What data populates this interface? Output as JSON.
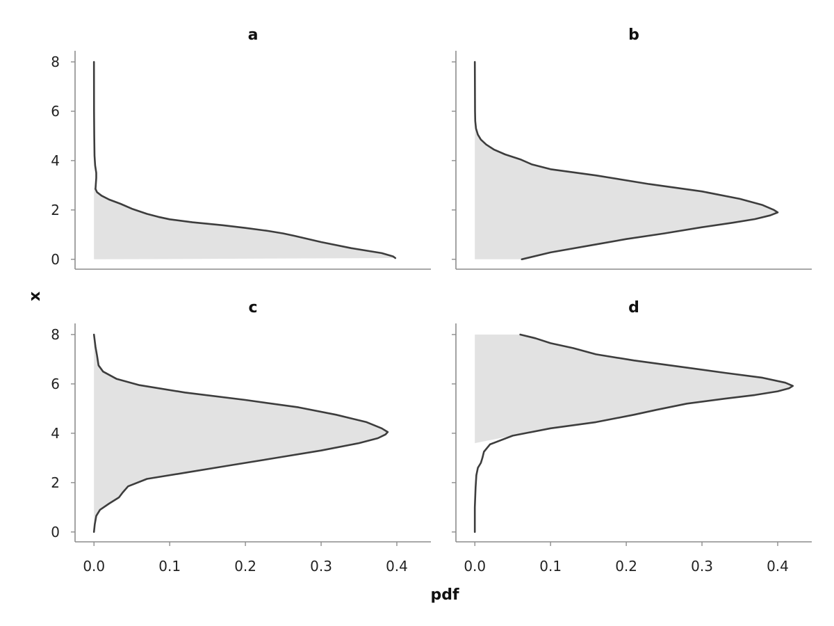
{
  "chart_data": {
    "type": "area",
    "xlabel": "pdf",
    "ylabel": "x",
    "xlim": [
      -0.025,
      0.445
    ],
    "ylim": [
      -0.4,
      8.45
    ],
    "xticks": [
      0.0,
      0.1,
      0.2,
      0.3,
      0.4
    ],
    "xtick_labels": [
      "0.0",
      "0.1",
      "0.2",
      "0.3",
      "0.4"
    ],
    "yticks": [
      0,
      2,
      4,
      6,
      8
    ],
    "ytick_labels": [
      "0",
      "2",
      "4",
      "6",
      "8"
    ],
    "grid": false,
    "legend": "none",
    "colors": {
      "fill": "#e2e2e2",
      "line": "#3d3d3d"
    },
    "panels": [
      {
        "title": "a",
        "x": [
          0.398,
          0.395,
          0.38,
          0.34,
          0.3,
          0.265,
          0.25,
          0.23,
          0.2,
          0.17,
          0.13,
          0.1,
          0.085,
          0.07,
          0.05,
          0.035,
          0.02,
          0.01,
          0.004,
          0.002,
          0.003,
          0.003,
          0.0015,
          0.0007,
          0.0003,
          0.0001,
          0.0
        ],
        "y": [
          0.05,
          0.12,
          0.25,
          0.45,
          0.7,
          0.95,
          1.05,
          1.15,
          1.27,
          1.38,
          1.5,
          1.62,
          1.72,
          1.84,
          2.05,
          2.25,
          2.42,
          2.58,
          2.72,
          2.85,
          3.3,
          3.5,
          3.8,
          4.2,
          5.0,
          6.0,
          8.0
        ],
        "area_start_y": 0,
        "area_end_y": 2.9
      },
      {
        "title": "b",
        "x": [
          0.062,
          0.1,
          0.15,
          0.2,
          0.25,
          0.3,
          0.34,
          0.37,
          0.39,
          0.4,
          0.395,
          0.38,
          0.35,
          0.3,
          0.23,
          0.16,
          0.1,
          0.075,
          0.06,
          0.04,
          0.025,
          0.015,
          0.008,
          0.004,
          0.0015,
          0.0005,
          0.0002,
          0.0
        ],
        "y": [
          0.0,
          0.28,
          0.55,
          0.82,
          1.05,
          1.3,
          1.48,
          1.63,
          1.78,
          1.9,
          2.0,
          2.2,
          2.45,
          2.75,
          3.05,
          3.4,
          3.65,
          3.85,
          4.05,
          4.25,
          4.45,
          4.65,
          4.85,
          5.05,
          5.3,
          5.6,
          6.0,
          8.0
        ],
        "area_start_y": 0,
        "area_end_y": 5.8
      },
      {
        "title": "c",
        "x": [
          0.0,
          0.001,
          0.003,
          0.008,
          0.02,
          0.033,
          0.038,
          0.045,
          0.07,
          0.12,
          0.18,
          0.24,
          0.3,
          0.35,
          0.375,
          0.385,
          0.388,
          0.38,
          0.36,
          0.32,
          0.27,
          0.2,
          0.12,
          0.06,
          0.03,
          0.012,
          0.006,
          0.004,
          0.002,
          0.0
        ],
        "y": [
          0.0,
          0.3,
          0.65,
          0.9,
          1.15,
          1.4,
          1.6,
          1.85,
          2.15,
          2.4,
          2.7,
          3.0,
          3.3,
          3.6,
          3.8,
          3.95,
          4.05,
          4.2,
          4.45,
          4.75,
          5.05,
          5.35,
          5.65,
          5.95,
          6.2,
          6.5,
          6.75,
          7.15,
          7.5,
          8.0
        ],
        "area_start_y": 0,
        "area_end_y": 8
      },
      {
        "title": "d",
        "x": [
          0.0,
          0.0,
          0.001,
          0.002,
          0.004,
          0.008,
          0.01,
          0.012,
          0.02,
          0.05,
          0.1,
          0.16,
          0.21,
          0.24,
          0.28,
          0.33,
          0.37,
          0.4,
          0.415,
          0.42,
          0.41,
          0.38,
          0.33,
          0.27,
          0.21,
          0.16,
          0.13,
          0.1,
          0.08,
          0.06
        ],
        "y": [
          0.0,
          1.0,
          1.8,
          2.3,
          2.6,
          2.8,
          3.0,
          3.25,
          3.55,
          3.9,
          4.2,
          4.45,
          4.75,
          4.95,
          5.2,
          5.4,
          5.55,
          5.7,
          5.82,
          5.92,
          6.05,
          6.25,
          6.45,
          6.7,
          6.95,
          7.2,
          7.45,
          7.65,
          7.85,
          8.0
        ],
        "area_start_y": 3.6,
        "area_end_y": 8
      }
    ]
  }
}
